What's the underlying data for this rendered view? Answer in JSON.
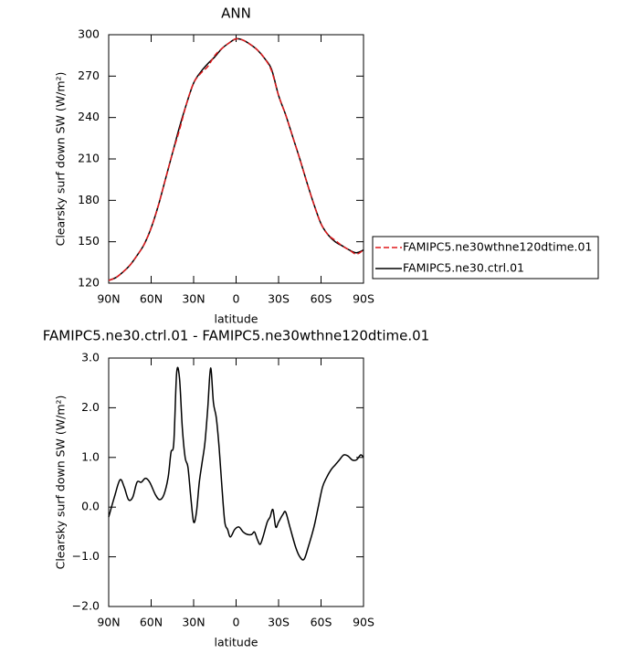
{
  "chart_data": [
    {
      "type": "line",
      "title": "ANN",
      "xlabel": "latitude",
      "ylabel": "Clearsky surf down SW (W/m²)",
      "x": [
        90,
        85,
        80,
        75,
        70,
        65,
        60,
        55,
        50,
        45,
        40,
        35,
        30,
        25,
        20,
        15,
        10,
        5,
        0,
        -5,
        -10,
        -15,
        -20,
        -25,
        -30,
        -35,
        -40,
        -45,
        -50,
        -55,
        -60,
        -65,
        -70,
        -75,
        -80,
        -85,
        -90
      ],
      "series": [
        {
          "name": "FAMIPC5.ne30wthne120dtime.01",
          "color": "#e0191c",
          "linestyle": "dashed",
          "values": [
            122,
            124,
            128,
            133,
            140,
            148,
            160,
            176,
            195,
            214,
            231,
            250,
            265,
            272,
            277,
            285,
            290,
            294,
            297,
            296,
            293,
            289,
            283,
            274,
            256,
            242,
            226,
            210,
            193,
            177,
            163,
            155,
            151,
            147,
            144,
            141,
            144
          ]
        },
        {
          "name": "FAMIPC5.ne30.ctrl.01",
          "color": "#000000",
          "linestyle": "solid",
          "values": [
            122,
            124,
            128,
            133,
            140,
            148,
            160,
            176,
            195,
            214,
            233,
            250,
            265,
            273,
            279,
            284,
            290,
            294,
            297,
            296,
            293,
            289,
            283,
            275,
            256,
            242,
            226,
            210,
            193,
            177,
            163,
            155,
            150,
            147,
            144,
            142,
            144
          ]
        }
      ],
      "xlim": [
        90,
        -90
      ],
      "xticks": [
        {
          "value": 90,
          "label": "90N"
        },
        {
          "value": 60,
          "label": "60N"
        },
        {
          "value": 30,
          "label": "30N"
        },
        0,
        {
          "value": -30,
          "label": "30S"
        },
        {
          "value": -60,
          "label": "60S"
        },
        {
          "value": -90,
          "label": "90S"
        }
      ],
      "ylim": [
        120,
        300
      ],
      "yticks": [
        120,
        150,
        180,
        210,
        240,
        270,
        300
      ]
    },
    {
      "type": "line",
      "title": "FAMIPC5.ne30.ctrl.01 - FAMIPC5.ne30wthne120dtime.01",
      "xlabel": "latitude",
      "ylabel": "Clearsky surf down SW (W/m²)",
      "x": [
        90,
        86,
        82,
        79,
        76,
        73,
        70,
        67,
        64,
        61,
        57,
        54,
        51,
        48,
        46,
        44,
        42,
        40,
        38,
        36,
        34,
        32,
        30,
        28,
        26,
        24,
        22,
        20,
        18,
        16,
        14,
        12,
        10,
        8,
        6,
        4,
        1,
        -2,
        -5,
        -8,
        -11,
        -13,
        -15,
        -17,
        -19,
        -22,
        -24,
        -26,
        -28,
        -30,
        -33,
        -35,
        -38,
        -42,
        -45,
        -48,
        -51,
        -55,
        -58,
        -61,
        -64,
        -67,
        -70,
        -73,
        -76,
        -79,
        -82,
        -85,
        -88,
        -90
      ],
      "series": [
        {
          "color": "#000000",
          "linestyle": "solid",
          "values": [
            -0.2,
            0.2,
            0.55,
            0.4,
            0.15,
            0.2,
            0.5,
            0.5,
            0.58,
            0.5,
            0.25,
            0.15,
            0.25,
            0.6,
            1.1,
            1.3,
            2.7,
            2.6,
            1.6,
            1.0,
            0.8,
            0.2,
            -0.3,
            -0.1,
            0.5,
            0.9,
            1.3,
            2.0,
            2.8,
            2.1,
            1.8,
            1.2,
            0.4,
            -0.3,
            -0.45,
            -0.6,
            -0.45,
            -0.4,
            -0.5,
            -0.55,
            -0.55,
            -0.5,
            -0.65,
            -0.75,
            -0.6,
            -0.3,
            -0.2,
            -0.05,
            -0.4,
            -0.3,
            -0.15,
            -0.1,
            -0.4,
            -0.8,
            -1.0,
            -1.05,
            -0.8,
            -0.4,
            0.0,
            0.4,
            0.6,
            0.75,
            0.85,
            0.95,
            1.05,
            1.03,
            0.95,
            0.95,
            1.05,
            1.0
          ]
        }
      ],
      "xlim": [
        90,
        -90
      ],
      "xticks": [
        {
          "value": 90,
          "label": "90N"
        },
        {
          "value": 60,
          "label": "60N"
        },
        {
          "value": 30,
          "label": "30N"
        },
        0,
        {
          "value": -30,
          "label": "30S"
        },
        {
          "value": -60,
          "label": "60S"
        },
        {
          "value": -90,
          "label": "90S"
        }
      ],
      "ylim": [
        -2,
        3
      ],
      "yticks": [
        {
          "value": -2,
          "label": "−2.0"
        },
        {
          "value": -1,
          "label": "−1.0"
        },
        {
          "value": 0,
          "label": "0.0"
        },
        {
          "value": 1,
          "label": "1.0"
        },
        {
          "value": 2,
          "label": "2.0"
        },
        {
          "value": 3,
          "label": "3.0"
        }
      ]
    }
  ]
}
